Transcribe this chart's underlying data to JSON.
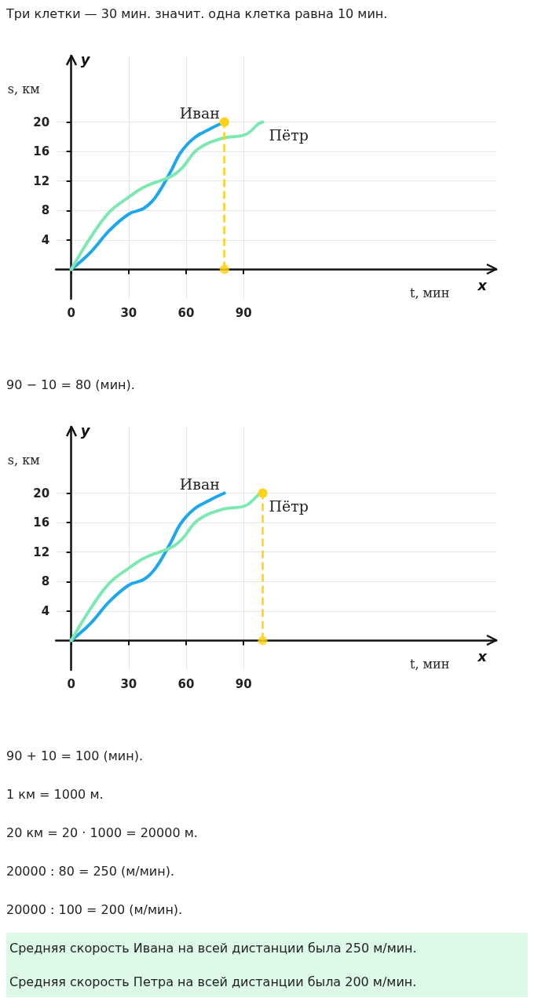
{
  "chart_data": [
    {
      "type": "line",
      "title": "Три клетки — 30 мин. значит. одна клетка равна 10 мин.",
      "xlabel": "t, мин",
      "ylabel": "s, км",
      "xlim": [
        -8,
        222
      ],
      "ylim": [
        -4,
        29
      ],
      "xticks": [
        0,
        30,
        60,
        90
      ],
      "yticks": [
        4,
        8,
        12,
        16,
        20
      ],
      "grid": true,
      "marker": "none",
      "series": [
        {
          "name": "Иван",
          "color": "#1ea7ea",
          "x": [
            0,
            10,
            20,
            30,
            38,
            44,
            52,
            57,
            64,
            72,
            80
          ],
          "values": [
            0,
            2.3,
            5.3,
            7.5,
            8.3,
            9.8,
            13.3,
            15.8,
            17.8,
            19,
            20
          ]
        },
        {
          "name": "Пётр",
          "color": "#7ee8b2",
          "x": [
            0,
            10,
            20,
            30,
            39,
            52,
            58,
            66,
            79,
            91,
            98,
            100
          ],
          "values": [
            0,
            4.3,
            7.8,
            9.8,
            11.3,
            12.6,
            13.8,
            16.3,
            17.8,
            18.3,
            19.8,
            20
          ]
        },
        {
          "type": "scatter",
          "marker": "circle",
          "color": "#ffd21a",
          "x": [
            80
          ],
          "values": [
            0
          ]
        }
      ],
      "ref_lines": [
        {
          "axis": "x",
          "value": 80,
          "color": "#ffd21a",
          "line_style": "dashed"
        }
      ],
      "annotations": [
        "90 − 10 = 80 (мин).",
        "x",
        "y"
      ]
    },
    {
      "type": "line",
      "xlabel": "t, мин",
      "ylabel": "s, км",
      "xlim": [
        -8,
        222
      ],
      "ylim": [
        -4,
        29
      ],
      "xticks": [
        0,
        30,
        60,
        90
      ],
      "yticks": [
        4,
        8,
        12,
        16,
        20
      ],
      "grid": true,
      "marker": "none",
      "series": [
        {
          "name": "Иван",
          "color": "#1ea7ea",
          "x": [
            0,
            10,
            20,
            30,
            38,
            44,
            52,
            57,
            64,
            72,
            80
          ],
          "values": [
            0,
            2.3,
            5.3,
            7.5,
            8.3,
            9.8,
            13.3,
            15.8,
            17.8,
            19,
            20
          ]
        },
        {
          "name": "Пётр",
          "color": "#7ee8b2",
          "x": [
            0,
            10,
            20,
            30,
            39,
            52,
            58,
            66,
            79,
            91,
            98,
            100
          ],
          "values": [
            0,
            4.3,
            7.8,
            9.8,
            11.3,
            12.6,
            13.8,
            16.3,
            17.8,
            18.3,
            19.8,
            20
          ]
        },
        {
          "type": "scatter",
          "marker": "circle",
          "color": "#ffd21a",
          "x": [
            100
          ],
          "values": [
            0
          ]
        }
      ],
      "ref_lines": [
        {
          "axis": "x",
          "value": 100,
          "color": "#ffd21a",
          "line_style": "dashed"
        }
      ],
      "annotations": [
        "90 + 10 = 100 (мин).",
        "1 км = 1000 м.",
        "20 км = 20 · 1000 = 20000 м.",
        "20000 : 80 = 250 (м/мин).",
        "20000 : 100 = 200 (м/мин).",
        "Средняя скорость Ивана на всей дистанции была 250 м/мин.",
        "Средняя скорость Петра на всей дистанции была 200 м/мин.",
        "x",
        "y"
      ]
    }
  ]
}
